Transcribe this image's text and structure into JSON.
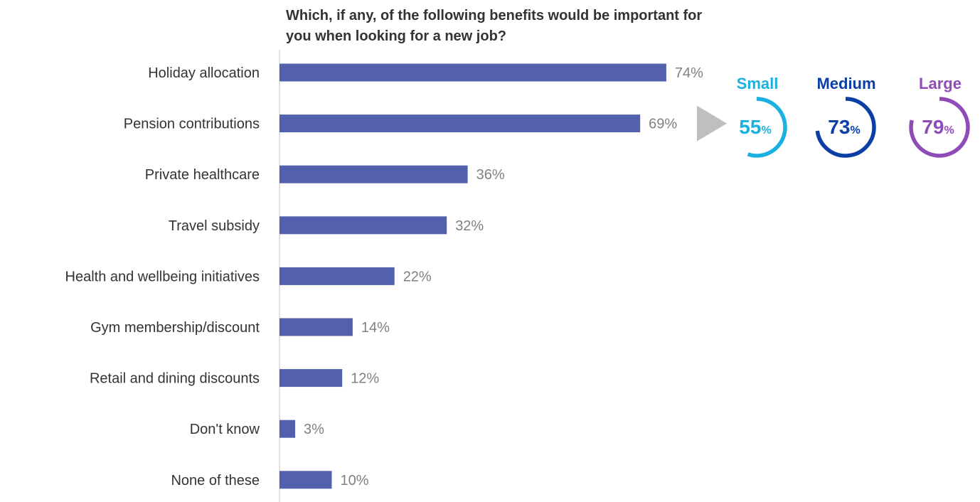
{
  "chart_data": {
    "type": "bar",
    "orientation": "horizontal",
    "title": "Which, if any, of the following benefits would be important for you when looking for a new job?",
    "categories": [
      "Holiday allocation",
      "Pension contributions",
      "Private healthcare",
      "Travel subsidy",
      "Health and wellbeing initiatives",
      "Gym membership/discount",
      "Retail and dining discounts",
      "Don't know",
      "None of these"
    ],
    "values": [
      74,
      69,
      36,
      32,
      22,
      14,
      12,
      3,
      10
    ],
    "value_labels": [
      "74%",
      "69%",
      "36%",
      "32%",
      "22%",
      "14%",
      "12%",
      "3%",
      "10%"
    ],
    "xlim": [
      0,
      100
    ],
    "grid": false,
    "bar_color": "#5260ad",
    "callout": {
      "category": "Pension contributions",
      "arrow_color": "#bfbfbf",
      "sizes": [
        {
          "name": "Small",
          "value": 55,
          "value_text": "55",
          "unit": "%",
          "color": "#1ab0e0"
        },
        {
          "name": "Medium",
          "value": 73,
          "value_text": "73",
          "unit": "%",
          "color": "#0b3fa6"
        },
        {
          "name": "Large",
          "value": 79,
          "value_text": "79",
          "unit": "%",
          "color": "#8f4cb8"
        }
      ]
    }
  }
}
